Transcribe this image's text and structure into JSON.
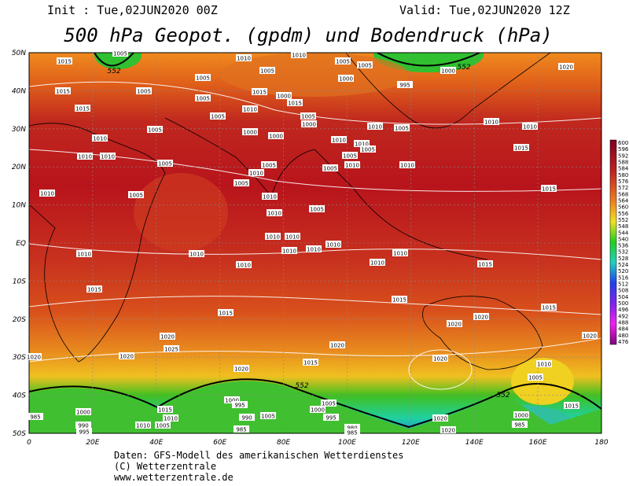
{
  "header": {
    "init": "Init : Tue,02JUN2020 00Z",
    "valid": "Valid: Tue,02JUN2020 12Z",
    "title": "500 hPa Geopot. (gpdm) und Bodendruck (hPa)"
  },
  "map": {
    "lat_labels": [
      "50N",
      "40N",
      "30N",
      "20N",
      "10N",
      "EQ",
      "10S",
      "20S",
      "30S",
      "40S",
      "50S"
    ],
    "lon_labels": [
      "0",
      "20E",
      "40E",
      "60E",
      "80E",
      "100E",
      "120E",
      "140E",
      "160E",
      "180"
    ],
    "isobar_labels": [
      "1015",
      "1005",
      "1005",
      "1010",
      "1010",
      "1005",
      "1005",
      "995",
      "1000",
      "1020",
      "1015",
      "1015",
      "1005",
      "1005",
      "1005",
      "1010",
      "1015",
      "1005",
      "1000",
      "1015",
      "1005",
      "1000",
      "1000",
      "1010",
      "1005",
      "1010",
      "1010",
      "1010",
      "1005",
      "1000",
      "1000",
      "1010",
      "1010",
      "1005",
      "1005",
      "1010",
      "1015",
      "1010",
      "1010",
      "1005",
      "1005",
      "1005",
      "1010",
      "1010",
      "1005",
      "1010",
      "1010",
      "1005",
      "1015",
      "1005",
      "1010",
      "1010",
      "1010",
      "1010",
      "1010",
      "1010",
      "1010",
      "1010",
      "1010",
      "1010",
      "1010",
      "1015",
      "1015",
      "1015",
      "1015",
      "1020",
      "1020",
      "1015",
      "1020",
      "1020",
      "1025",
      "1020",
      "1020",
      "1020",
      "1020",
      "1015",
      "1020",
      "1010",
      "1005",
      "1000",
      "1015",
      "1000",
      "985",
      "1010",
      "995",
      "990",
      "1005",
      "1000",
      "1005",
      "995",
      "980",
      "985",
      "985",
      "1020",
      "1020",
      "1000",
      "985",
      "1015",
      "990",
      "995",
      "1010",
      "1005"
    ],
    "contour_labels": [
      "552",
      "552",
      "552",
      "552"
    ]
  },
  "colorbar": {
    "labels": [
      "600",
      "596",
      "592",
      "588",
      "584",
      "580",
      "576",
      "572",
      "568",
      "564",
      "560",
      "556",
      "552",
      "548",
      "544",
      "540",
      "536",
      "532",
      "528",
      "524",
      "520",
      "516",
      "512",
      "508",
      "504",
      "500",
      "496",
      "492",
      "488",
      "484",
      "480",
      "476"
    ]
  },
  "footer": {
    "line1": "Daten: GFS-Modell des amerikanischen Wetterdienstes",
    "line2": "(C) Wetterzentrale",
    "line3": "www.wetterzentrale.de"
  }
}
